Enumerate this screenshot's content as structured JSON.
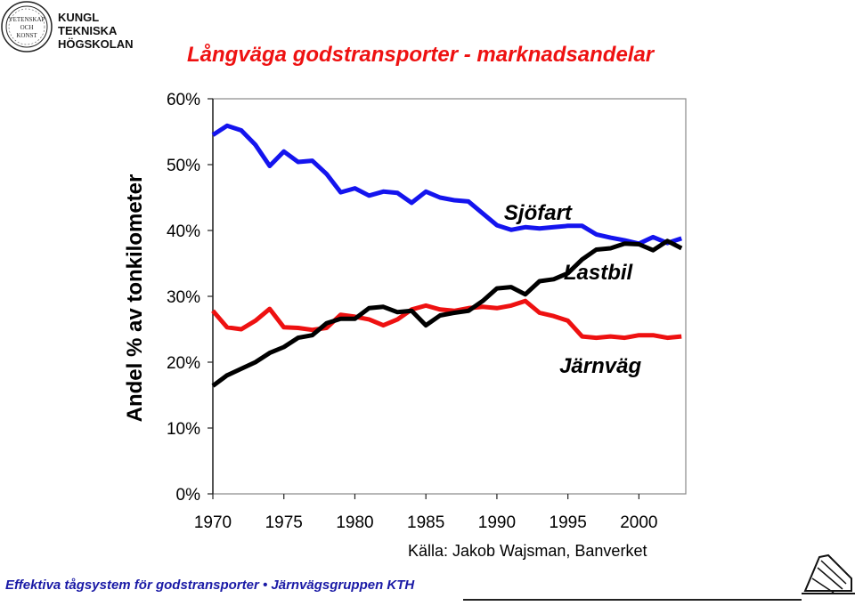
{
  "logo": {
    "lines": [
      "KUNGL",
      "TEKNISKA",
      "HÖGSKOLAN"
    ],
    "seal_text": "VETENSKAP OCH KONST"
  },
  "title": "Långväga godstransporter - marknadsandelar",
  "ylabel": "Andel % av tonkilometer",
  "source": "Källa: Jakob Wajsman, Banverket",
  "footer": "Effektiva tågsystem för godstransporter • Järnvägsgruppen  KTH",
  "chart_data": {
    "type": "line",
    "title": "Långväga godstransporter - marknadsandelar",
    "xlabel": "",
    "ylabel": "Andel % av tonkilometer",
    "x": [
      1970,
      1971,
      1972,
      1973,
      1974,
      1975,
      1976,
      1977,
      1978,
      1979,
      1980,
      1981,
      1982,
      1983,
      1984,
      1985,
      1986,
      1987,
      1988,
      1989,
      1990,
      1991,
      1992,
      1993,
      1994,
      1995,
      1996,
      1997,
      1998,
      1999,
      2000,
      2001,
      2002,
      2003
    ],
    "xticks": [
      1970,
      1975,
      1980,
      1985,
      1990,
      1995,
      2000
    ],
    "xtick_labels": [
      "1970",
      "1975",
      "1980",
      "1985",
      "1990",
      "1995",
      "2000"
    ],
    "xlim": [
      1970,
      2003.3
    ],
    "ylim": [
      0,
      60
    ],
    "yticks": [
      0,
      10,
      20,
      30,
      40,
      50,
      60
    ],
    "ytick_labels": [
      "0%",
      "10%",
      "20%",
      "30%",
      "40%",
      "50%",
      "60%"
    ],
    "grid": false,
    "series": [
      {
        "name": "Sjöfart",
        "color": "#1414ee",
        "values": [
          54.5,
          55.9,
          55.2,
          53.0,
          49.8,
          52.0,
          50.4,
          50.6,
          48.6,
          45.8,
          46.4,
          45.3,
          45.9,
          45.7,
          44.2,
          45.9,
          45.0,
          44.6,
          44.4,
          42.6,
          40.8,
          40.1,
          40.5,
          40.3,
          40.5,
          40.7,
          40.7,
          39.4,
          38.9,
          38.5,
          38.0,
          39.0,
          38.1,
          38.8
        ]
      },
      {
        "name": "Järnväg",
        "color": "#ee1111",
        "values": [
          27.8,
          25.3,
          25.0,
          26.3,
          28.1,
          25.3,
          25.2,
          24.9,
          25.2,
          27.2,
          26.9,
          26.5,
          25.6,
          26.5,
          28.0,
          28.6,
          28.0,
          27.8,
          28.2,
          28.4,
          28.2,
          28.6,
          29.3,
          27.5,
          27.0,
          26.3,
          23.9,
          23.7,
          23.9,
          23.7,
          24.1,
          24.1,
          23.7,
          23.9
        ]
      },
      {
        "name": "Lastbil",
        "color": "#000000",
        "values": [
          16.4,
          18.0,
          19.0,
          20.0,
          21.4,
          22.3,
          23.7,
          24.1,
          25.9,
          26.6,
          26.6,
          28.2,
          28.4,
          27.6,
          27.8,
          25.6,
          27.1,
          27.5,
          27.8,
          29.3,
          31.2,
          31.4,
          30.3,
          32.3,
          32.6,
          33.5,
          35.6,
          37.1,
          37.3,
          38.0,
          37.9,
          37.0,
          38.4,
          37.3
        ]
      }
    ],
    "annotations": [
      {
        "text": "Sjöfart",
        "x": 1990.5,
        "y": 41.6
      },
      {
        "text": "Lastbil",
        "x": 1994.7,
        "y": 32.6
      },
      {
        "text": "Järnväg",
        "x": 1994.4,
        "y": 18.4
      }
    ]
  }
}
